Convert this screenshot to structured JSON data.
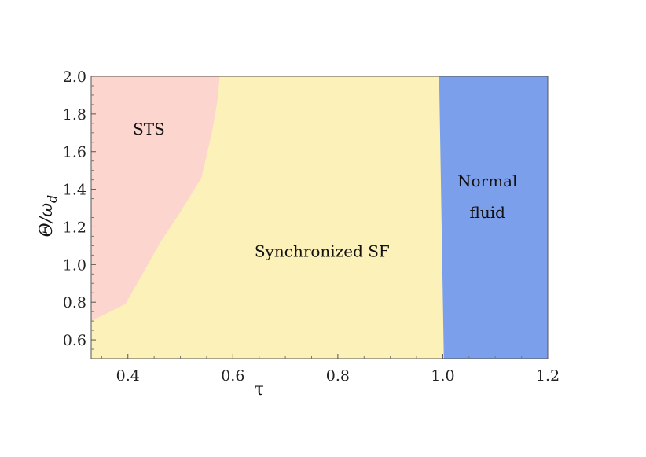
{
  "chart_data": {
    "type": "area",
    "title": "",
    "xlabel": "τ",
    "ylabel": "Θ/ω_d",
    "ylabel_main": "Θ/ω",
    "ylabel_sub": "d",
    "xlim": [
      0.33,
      1.2
    ],
    "ylim": [
      0.5,
      2.0
    ],
    "xticks": [
      0.4,
      0.6,
      0.8,
      1.0,
      1.2
    ],
    "xtick_labels": [
      "0.4",
      "0.6",
      "0.8",
      "1.0",
      "1.2"
    ],
    "yticks": [
      0.6,
      0.8,
      1.0,
      1.2,
      1.4,
      1.6,
      1.8,
      2.0
    ],
    "ytick_labels": [
      "0.6",
      "0.8",
      "1.0",
      "1.2",
      "1.4",
      "1.6",
      "1.8",
      "2.0"
    ],
    "grid": false,
    "regions": [
      {
        "name": "STS",
        "color": "#fcd5cf",
        "label_lines": [
          "STS"
        ],
        "label_pos": [
          0.44,
          1.72
        ],
        "boundary": [
          [
            0.33,
            0.7
          ],
          [
            0.395,
            0.79
          ],
          [
            0.43,
            0.96
          ],
          [
            0.46,
            1.11
          ],
          [
            0.5,
            1.28
          ],
          [
            0.54,
            1.46
          ],
          [
            0.56,
            1.7
          ],
          [
            0.57,
            1.86
          ],
          [
            0.575,
            2.0
          ]
        ]
      },
      {
        "name": "Synchronized SF",
        "color": "#fcf1b8",
        "label_lines": [
          "Synchronized SF"
        ],
        "label_pos": [
          0.77,
          1.07
        ],
        "boundary": []
      },
      {
        "name": "Normal fluid",
        "color": "#7b9feb",
        "label_lines": [
          "Normal",
          "fluid"
        ],
        "label_pos": [
          1.085,
          1.36
        ],
        "boundary": [
          [
            1.002,
            0.5
          ],
          [
            0.993,
            2.0
          ]
        ]
      }
    ]
  }
}
